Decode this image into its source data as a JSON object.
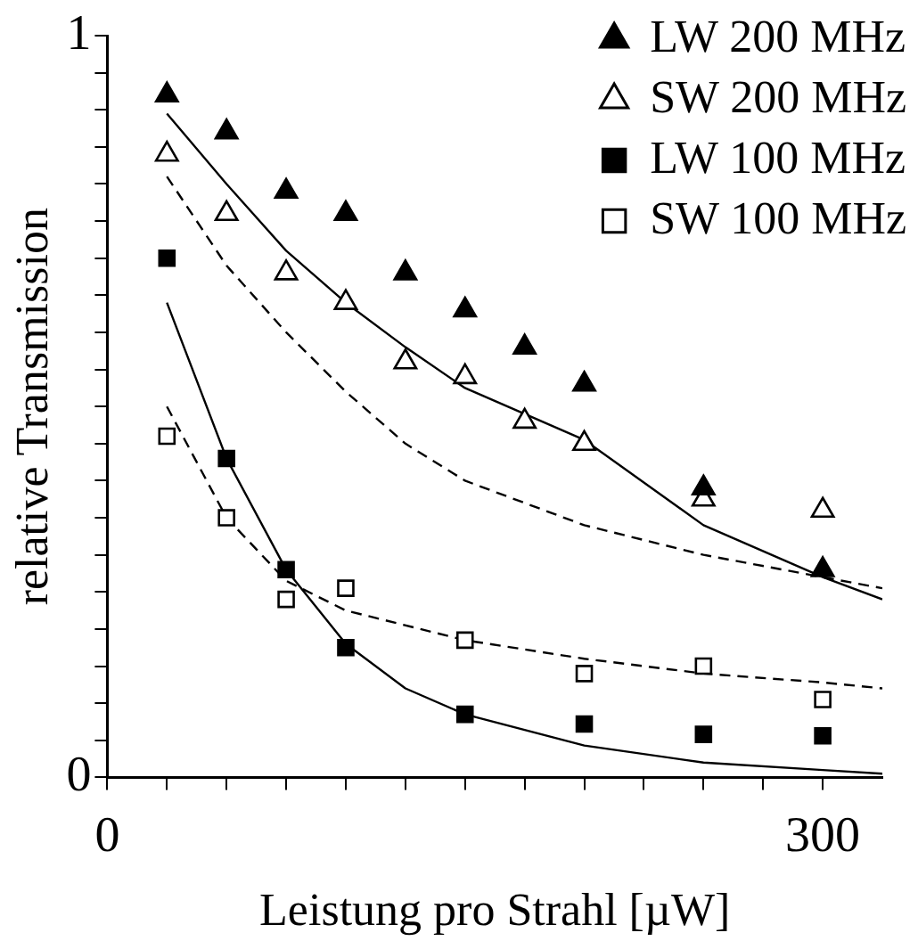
{
  "chart_data": {
    "type": "scatter",
    "xlabel": "Leistung pro Strahl [µW]",
    "ylabel": "relative Transmission",
    "xlim": [
      0,
      325
    ],
    "xticks": [
      0,
      {
        "value": 25,
        "label": null
      },
      {
        "value": 50,
        "label": null
      },
      {
        "value": 75,
        "label": null
      },
      {
        "value": 100,
        "label": null
      },
      {
        "value": 125,
        "label": null
      },
      {
        "value": 150,
        "label": null
      },
      {
        "value": 175,
        "label": null
      },
      {
        "value": 200,
        "label": null
      },
      {
        "value": 225,
        "label": null
      },
      {
        "value": 250,
        "label": null
      },
      {
        "value": 275,
        "label": null
      },
      300
    ],
    "ylim": [
      0,
      1
    ],
    "yticks": [
      0,
      {
        "value": 0.05,
        "label": null
      },
      {
        "value": 0.1,
        "label": null
      },
      {
        "value": 0.15,
        "label": null
      },
      {
        "value": 0.2,
        "label": null
      },
      {
        "value": 0.25,
        "label": null
      },
      {
        "value": 0.3,
        "label": null
      },
      {
        "value": 0.35,
        "label": null
      },
      {
        "value": 0.4,
        "label": null
      },
      {
        "value": 0.45,
        "label": null
      },
      {
        "value": 0.5,
        "label": null
      },
      {
        "value": 0.55,
        "label": null
      },
      {
        "value": 0.6,
        "label": null
      },
      {
        "value": 0.65,
        "label": null
      },
      {
        "value": 0.7,
        "label": null
      },
      {
        "value": 0.75,
        "label": null
      },
      {
        "value": 0.8,
        "label": null
      },
      {
        "value": 0.85,
        "label": null
      },
      {
        "value": 0.9,
        "label": null
      },
      {
        "value": 0.95,
        "label": null
      },
      1
    ],
    "grid": false,
    "legend": "top right",
    "series": [
      {
        "name": "LW 200 MHz",
        "type": "scatter",
        "marker": "triangle",
        "color": "#000000",
        "x": [
          25,
          50,
          75,
          100,
          125,
          150,
          175,
          200,
          250,
          300
        ],
        "values": [
          0.92,
          0.87,
          0.79,
          0.76,
          0.68,
          0.63,
          0.58,
          0.53,
          0.39,
          0.28
        ]
      },
      {
        "name": "SW 200 MHz",
        "type": "scatter",
        "marker": "triangle",
        "color": "#ffffff",
        "x": [
          25,
          50,
          75,
          100,
          125,
          150,
          175,
          200,
          250,
          300
        ],
        "values": [
          0.84,
          0.76,
          0.68,
          0.64,
          0.56,
          0.54,
          0.48,
          0.45,
          0.375,
          0.36
        ]
      },
      {
        "name": "LW 100 MHz",
        "type": "scatter",
        "marker": "square",
        "color": "#000000",
        "x": [
          25,
          50,
          75,
          100,
          150,
          200,
          250,
          300
        ],
        "values": [
          0.7,
          0.43,
          0.28,
          0.175,
          0.085,
          0.072,
          0.058,
          0.056
        ]
      },
      {
        "name": "SW 100 MHz",
        "type": "scatter",
        "marker": "square",
        "color": "#ffffff",
        "x": [
          25,
          50,
          75,
          100,
          150,
          200,
          250,
          300
        ],
        "values": [
          0.46,
          0.35,
          0.24,
          0.255,
          0.185,
          0.14,
          0.15,
          0.105
        ]
      },
      {
        "type": "line",
        "marker": "none",
        "line_style": "solid",
        "color": "#000000",
        "x": [
          25,
          50,
          75,
          100,
          125,
          150,
          200,
          250,
          300,
          325
        ],
        "values": [
          0.895,
          0.8,
          0.71,
          0.64,
          0.58,
          0.525,
          0.455,
          0.34,
          0.27,
          0.24
        ]
      },
      {
        "type": "line",
        "marker": "none",
        "line_style": "dashed",
        "color": "#000000",
        "x": [
          25,
          50,
          75,
          100,
          125,
          150,
          175,
          200,
          250,
          300,
          325
        ],
        "values": [
          0.81,
          0.69,
          0.6,
          0.52,
          0.45,
          0.4,
          0.37,
          0.34,
          0.3,
          0.27,
          0.255
        ]
      },
      {
        "type": "line",
        "marker": "none",
        "line_style": "solid",
        "color": "#000000",
        "x": [
          25,
          50,
          75,
          100,
          125,
          150,
          200,
          250,
          300,
          325
        ],
        "values": [
          0.64,
          0.43,
          0.28,
          0.18,
          0.12,
          0.085,
          0.043,
          0.02,
          0.01,
          0.005
        ]
      },
      {
        "type": "line",
        "marker": "none",
        "line_style": "dashed",
        "color": "#000000",
        "x": [
          25,
          50,
          75,
          100,
          150,
          200,
          250,
          300,
          325
        ],
        "values": [
          0.5,
          0.35,
          0.265,
          0.225,
          0.185,
          0.16,
          0.14,
          0.128,
          0.12
        ]
      }
    ]
  }
}
